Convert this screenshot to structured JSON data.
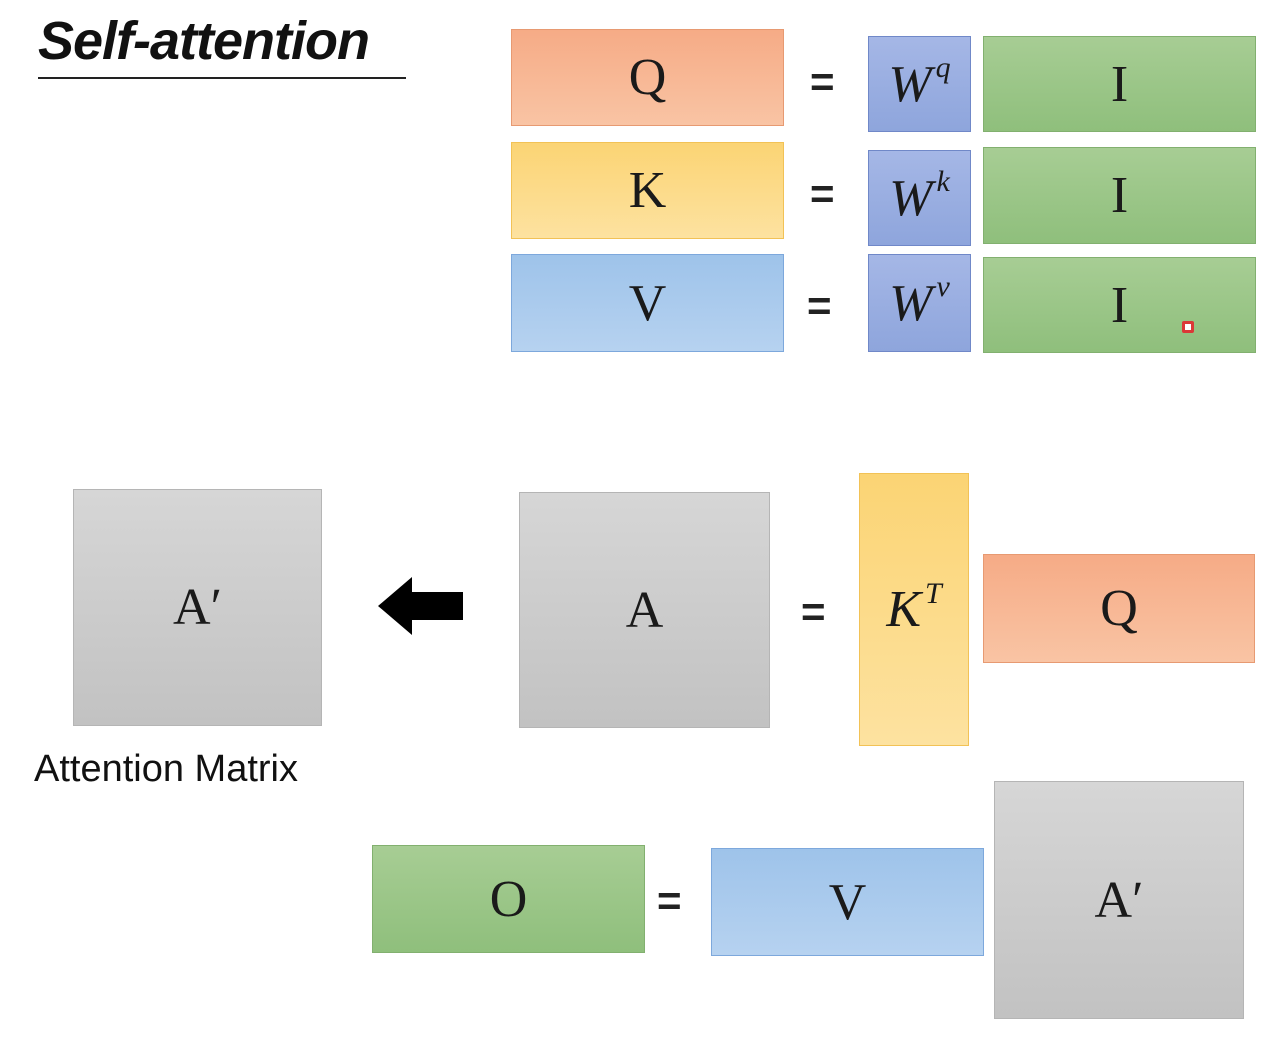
{
  "title": "Self-attention",
  "top_rows": [
    {
      "lhs": "Q",
      "eq": "=",
      "w_base": "W",
      "w_sup": "q",
      "rhs": "I"
    },
    {
      "lhs": "K",
      "eq": "=",
      "w_base": "W",
      "w_sup": "k",
      "rhs": "I"
    },
    {
      "lhs": "V",
      "eq": "=",
      "w_base": "W",
      "w_sup": "v",
      "rhs": "I"
    }
  ],
  "attention_row": {
    "a_prime": "A′",
    "a": "A",
    "eq": "=",
    "kt_base": "K",
    "kt_sup": "T",
    "q": "Q"
  },
  "caption": "Attention Matrix",
  "output_row": {
    "o": "O",
    "eq": "=",
    "v": "V",
    "a_prime": "A′"
  },
  "colors": {
    "query": "#f6ab86",
    "key": "#fbd474",
    "value": "#9ec3ea",
    "input": "#a7cd94",
    "weight": "#8ea5dc",
    "matrix": "#c8c8c8",
    "cursor": "#e8202a"
  }
}
